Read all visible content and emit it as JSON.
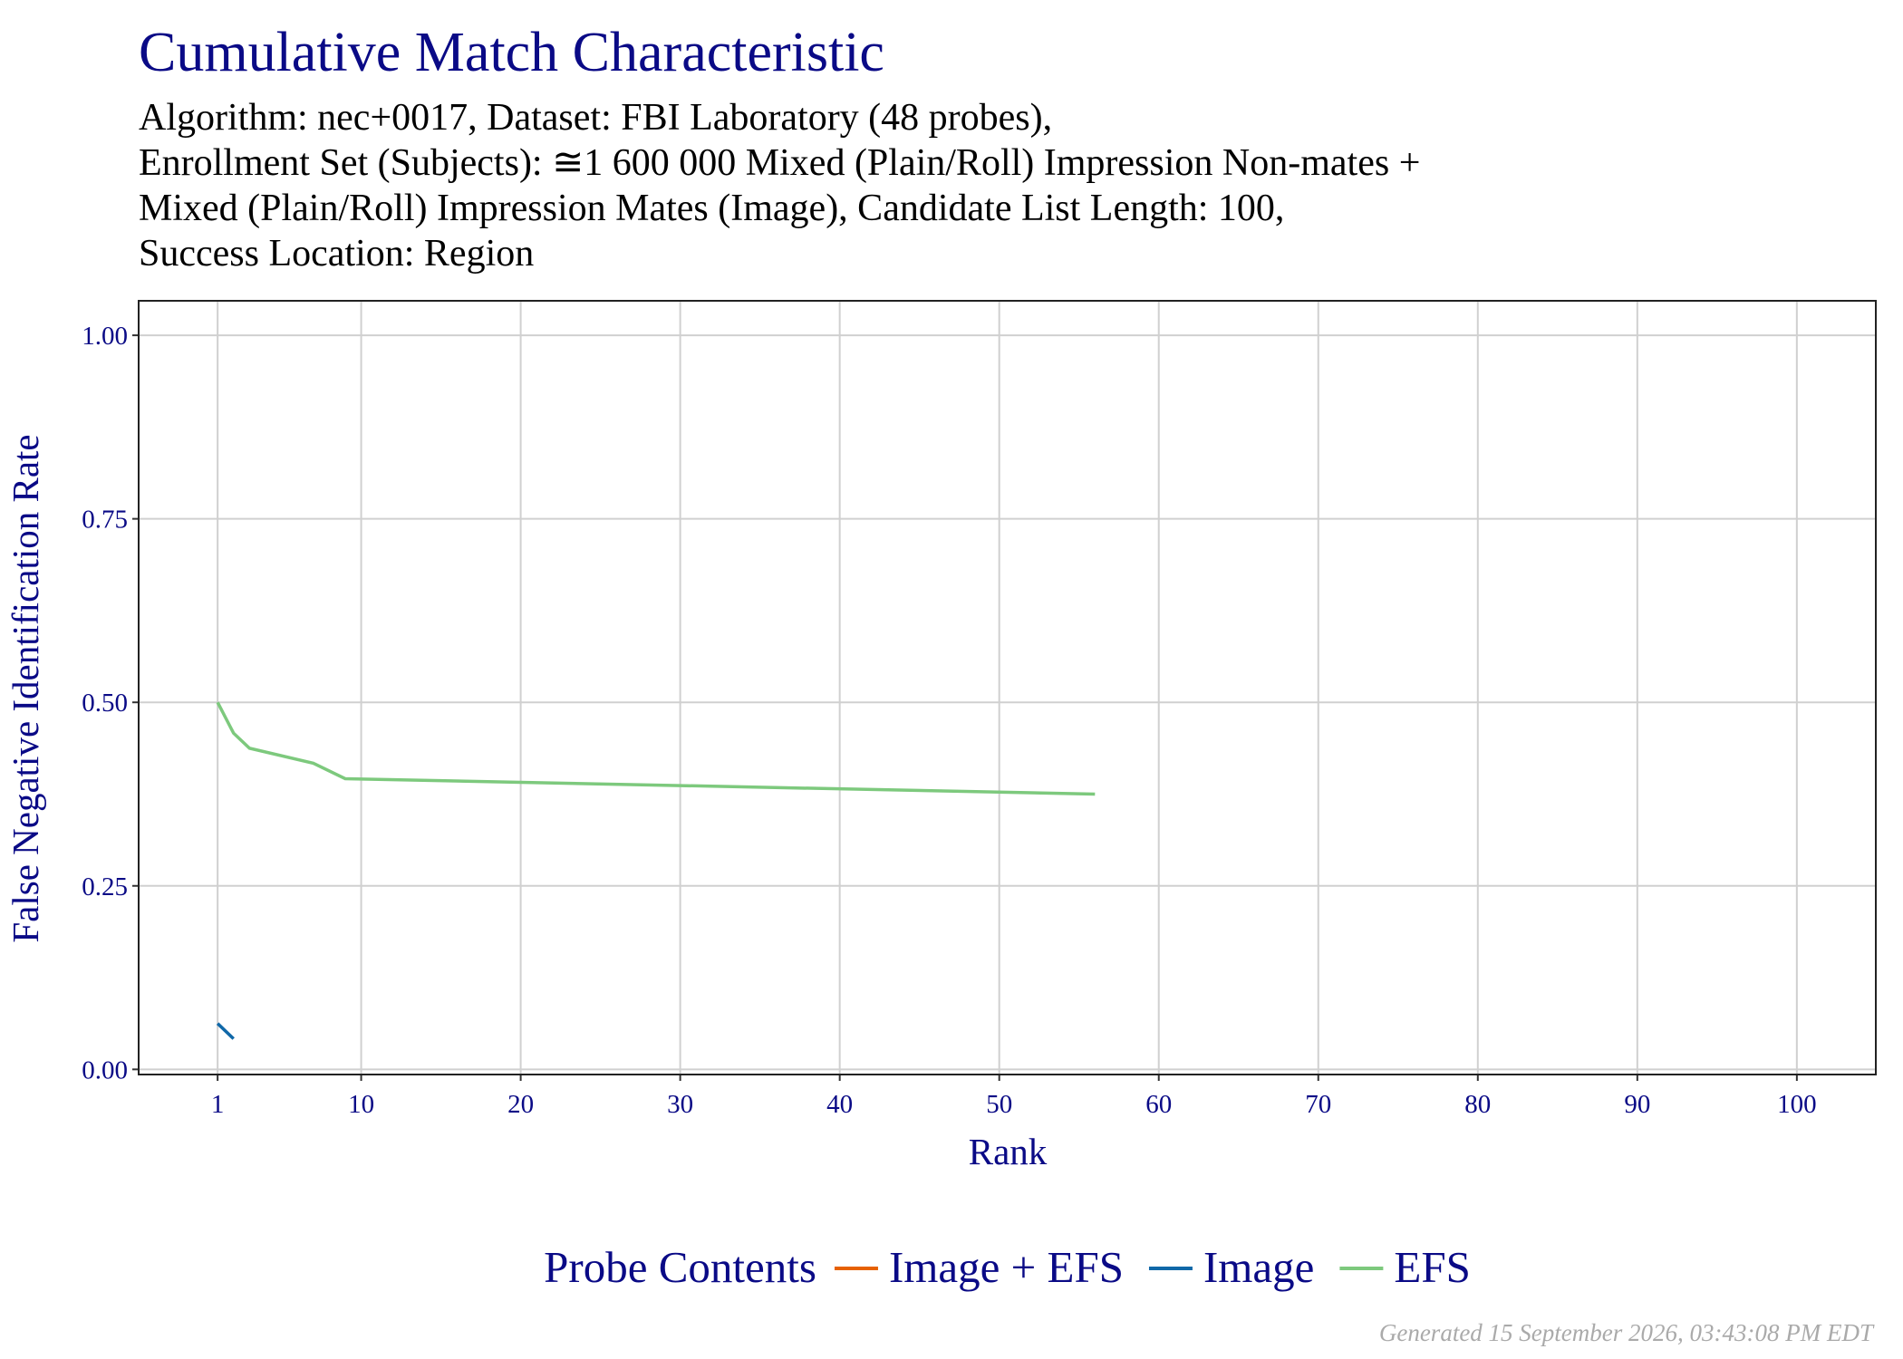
{
  "chart_data": {
    "type": "line",
    "title": "Cumulative Match Characteristic",
    "subtitle": [
      "Algorithm: nec+0017, Dataset: FBI Laboratory (48 probes),",
      "Enrollment Set (Subjects):  ≅1 600 000 Mixed (Plain/Roll) Impression Non-mates +",
      "Mixed (Plain/Roll) Impression Mates (Image), Candidate List Length: 100,",
      "Success Location: Region"
    ],
    "x_label": "Rank",
    "y_label": "False Negative Identification Rate",
    "legend_title": "Probe Contents",
    "legend_position": "bottom",
    "grid": true,
    "xlim": [
      -3.95,
      104.95
    ],
    "ylim": [
      -0.007,
      1.047
    ],
    "xticks": [
      1,
      10,
      20,
      30,
      40,
      50,
      60,
      70,
      80,
      90,
      100
    ],
    "yticks": [
      {
        "value": 0,
        "label": "0.00"
      },
      {
        "value": 0.25,
        "label": "0.25"
      },
      {
        "value": 0.5,
        "label": "0.50"
      },
      {
        "value": 0.75,
        "label": "0.75"
      },
      {
        "value": 1,
        "label": "1.00"
      }
    ],
    "series": [
      {
        "name": "Image + EFS",
        "color": "#e66100",
        "x": [],
        "values": []
      },
      {
        "name": "Image",
        "color": "#1068a8",
        "x": [
          1,
          2
        ],
        "values": [
          0.0625,
          0.0417
        ]
      },
      {
        "name": "EFS",
        "color": "#7dc97d",
        "x": [
          1,
          2,
          3,
          7,
          9,
          56
        ],
        "values": [
          0.5,
          0.458,
          0.4375,
          0.417,
          0.396,
          0.375
        ]
      }
    ],
    "footer": "Generated 15 September 2026, 03:43:08 PM EDT"
  }
}
